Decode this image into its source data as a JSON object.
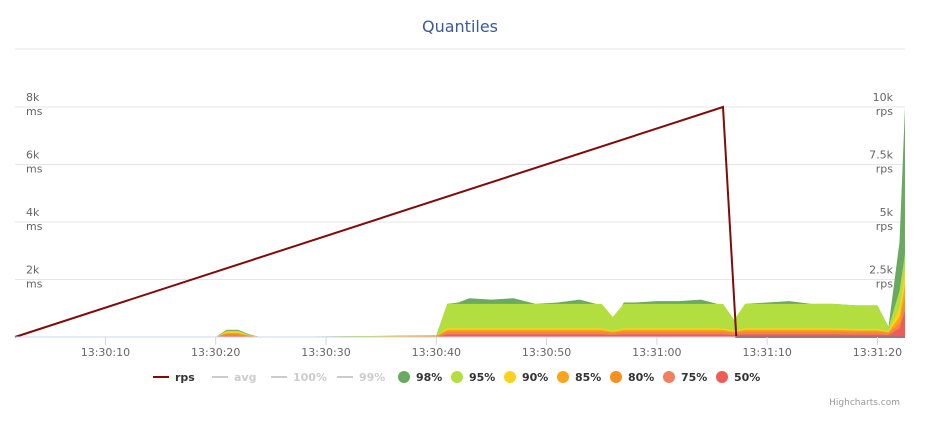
{
  "chart_data": {
    "type": "area",
    "title": "Quantiles",
    "credits": "Highcharts.com",
    "x_ticks": [
      "13:30:10",
      "13:30:20",
      "13:30:30",
      "13:30:40",
      "13:30:50",
      "13:31:00",
      "13:31:10",
      "13:31:20"
    ],
    "x_tick_seconds": [
      10,
      20,
      30,
      40,
      50,
      60,
      70,
      80
    ],
    "xlim_seconds": [
      1.8,
      82.5
    ],
    "y_left": {
      "unit": "ms",
      "ylim": [
        0,
        8000
      ],
      "ticks": [
        2000,
        4000,
        6000,
        8000
      ],
      "tick_labels": [
        "2k",
        "4k",
        "6k",
        "8k"
      ]
    },
    "y_right": {
      "unit": "rps",
      "ylim": [
        0,
        10000
      ],
      "ticks": [
        2500,
        5000,
        7500,
        10000
      ],
      "tick_labels": [
        "2.5k",
        "5k",
        "7.5k",
        "10k"
      ]
    },
    "legend_position": "bottom-center",
    "legend": [
      {
        "name": "rps",
        "color": "#7f0b0b",
        "symbol": "line",
        "visible": true
      },
      {
        "name": "avg",
        "color": "#cccccc",
        "symbol": "line",
        "visible": false
      },
      {
        "name": "100%",
        "color": "#cccccc",
        "symbol": "line",
        "visible": false
      },
      {
        "name": "99%",
        "color": "#cccccc",
        "symbol": "line",
        "visible": false
      },
      {
        "name": "98%",
        "color": "#6aa961",
        "symbol": "circle",
        "visible": true
      },
      {
        "name": "95%",
        "color": "#b2df3f",
        "symbol": "circle",
        "visible": true
      },
      {
        "name": "90%",
        "color": "#fdd21c",
        "symbol": "circle",
        "visible": true
      },
      {
        "name": "85%",
        "color": "#fba51a",
        "symbol": "circle",
        "visible": true
      },
      {
        "name": "80%",
        "color": "#f6901e",
        "symbol": "circle",
        "visible": true
      },
      {
        "name": "75%",
        "color": "#f08060",
        "symbol": "circle",
        "visible": true
      },
      {
        "name": "50%",
        "color": "#ef5b57",
        "symbol": "circle",
        "visible": true
      }
    ],
    "quantile_x_seconds": [
      1.8,
      20,
      21,
      22,
      23,
      24,
      30,
      40,
      41,
      42,
      43,
      45,
      47,
      49,
      51,
      53,
      55,
      56,
      57,
      58,
      60,
      62,
      64,
      66,
      67,
      68,
      70,
      72,
      74,
      76,
      78,
      79,
      80,
      81,
      82,
      82.5
    ],
    "quantiles": [
      {
        "name": "98%",
        "values": [
          0,
          0,
          250,
          250,
          100,
          0,
          20,
          60,
          1150,
          1200,
          1350,
          1300,
          1350,
          1150,
          1200,
          1300,
          1100,
          480,
          1200,
          1200,
          1250,
          1250,
          1300,
          1100,
          480,
          1150,
          1200,
          1250,
          1150,
          1150,
          1100,
          1100,
          1100,
          350,
          3300,
          8000
        ]
      },
      {
        "name": "95%",
        "values": [
          0,
          0,
          220,
          220,
          80,
          0,
          18,
          50,
          1150,
          1150,
          1150,
          1150,
          1150,
          1150,
          1150,
          1150,
          1150,
          700,
          1150,
          1150,
          1150,
          1150,
          1150,
          1150,
          600,
          1150,
          1150,
          1150,
          1150,
          1150,
          1100,
          1100,
          1100,
          330,
          1600,
          2900
        ]
      },
      {
        "name": "90%",
        "values": [
          0,
          0,
          180,
          180,
          60,
          0,
          15,
          40,
          300,
          300,
          300,
          300,
          300,
          300,
          300,
          300,
          300,
          220,
          300,
          300,
          300,
          300,
          300,
          300,
          220,
          300,
          300,
          300,
          300,
          300,
          280,
          280,
          280,
          200,
          1000,
          2400
        ]
      },
      {
        "name": "85%",
        "values": [
          0,
          0,
          140,
          140,
          50,
          0,
          12,
          30,
          250,
          250,
          250,
          250,
          250,
          250,
          250,
          250,
          250,
          180,
          250,
          250,
          250,
          250,
          250,
          250,
          180,
          250,
          250,
          250,
          250,
          250,
          230,
          230,
          230,
          170,
          700,
          1800
        ]
      },
      {
        "name": "80%",
        "values": [
          0,
          0,
          110,
          110,
          40,
          0,
          10,
          25,
          200,
          200,
          200,
          200,
          200,
          200,
          200,
          200,
          200,
          150,
          200,
          200,
          200,
          200,
          200,
          200,
          150,
          200,
          200,
          200,
          200,
          200,
          190,
          190,
          190,
          140,
          500,
          1400
        ]
      },
      {
        "name": "75%",
        "values": [
          0,
          0,
          80,
          80,
          30,
          0,
          8,
          20,
          160,
          160,
          160,
          160,
          160,
          160,
          160,
          160,
          160,
          120,
          160,
          160,
          160,
          160,
          160,
          160,
          120,
          160,
          160,
          160,
          160,
          160,
          150,
          150,
          150,
          110,
          400,
          1100
        ]
      },
      {
        "name": "50%",
        "values": [
          0,
          0,
          40,
          40,
          15,
          0,
          5,
          10,
          90,
          90,
          90,
          90,
          90,
          90,
          90,
          90,
          90,
          70,
          90,
          90,
          90,
          90,
          90,
          90,
          70,
          90,
          90,
          90,
          90,
          90,
          85,
          85,
          85,
          60,
          300,
          900
        ]
      }
    ],
    "rps_series": {
      "name": "rps",
      "x_seconds": [
        1.8,
        66.0,
        67.2,
        82.5
      ],
      "values": [
        0,
        10000,
        0,
        0
      ]
    }
  }
}
